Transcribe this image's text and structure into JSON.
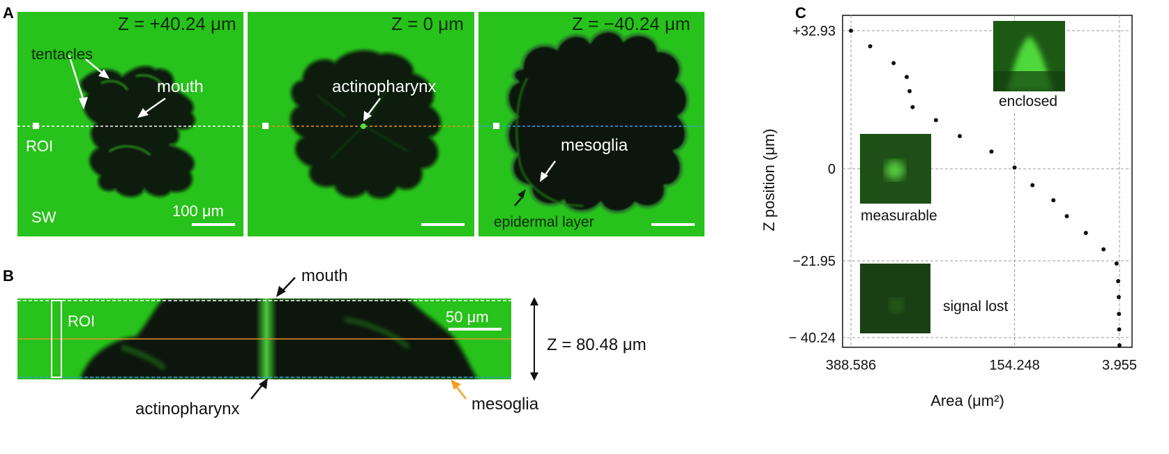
{
  "panel_letters": {
    "a": "A",
    "b": "B",
    "c": "C"
  },
  "panel_a": {
    "image1": {
      "z_label": "Z = +40.24 μm",
      "tentacles": "tentacles",
      "mouth": "mouth",
      "roi": "ROI",
      "sw": "SW",
      "scale": "100 μm"
    },
    "image2": {
      "z_label": "Z = 0 μm",
      "actinopharynx": "actinopharynx"
    },
    "image3": {
      "z_label": "Z = −40.24 μm",
      "mesoglia": "mesoglia",
      "epidermal": "epidermal layer"
    }
  },
  "panel_b": {
    "roi": "ROI",
    "scale": "50 μm",
    "mouth": "mouth",
    "actinopharynx": "actinopharynx",
    "mesoglia": "mesoglia",
    "z_span": "Z = 80.48 μm"
  },
  "colors": {
    "micro_green": "#27c21b",
    "dark_tissue": "#0a1a08",
    "white_line": "#ffffff",
    "orange_line": "#e8922a",
    "blue_line": "#3aa0e0",
    "arrow_orange": "#f0a020"
  },
  "chart_data": {
    "type": "scatter",
    "xlabel": "Area (μm²)",
    "ylabel": "Z position (μm)",
    "x_tick_labels": [
      "388.586",
      "154.248",
      "3.955"
    ],
    "y_tick_labels": [
      "+32.93",
      "0",
      "−21.95",
      "− 40.24"
    ],
    "y_ticks": [
      32.93,
      0,
      -21.95,
      -40.24
    ],
    "x_ticks": [
      388.586,
      154.248,
      3.955
    ],
    "xlim": [
      388.586,
      3.955
    ],
    "ylim": [
      -40.24,
      32.93
    ],
    "grid": true,
    "series": [
      {
        "points": [
          {
            "x": 388.586,
            "y": 32.93
          },
          {
            "x": 361.0,
            "y": 29.2
          },
          {
            "x": 327.5,
            "y": 25.2
          },
          {
            "x": 308.7,
            "y": 21.9
          },
          {
            "x": 304.6,
            "y": 18.5
          },
          {
            "x": 300.2,
            "y": 14.7
          },
          {
            "x": 266.8,
            "y": 11.6
          },
          {
            "x": 232.7,
            "y": 7.8
          },
          {
            "x": 187.3,
            "y": 4.1
          },
          {
            "x": 154.248,
            "y": 0.3
          },
          {
            "x": 128.6,
            "y": -3.9
          },
          {
            "x": 98.6,
            "y": -7.5
          },
          {
            "x": 79.4,
            "y": -11.3
          },
          {
            "x": 52.1,
            "y": -15.3
          },
          {
            "x": 26.8,
            "y": -19.2
          },
          {
            "x": 8.1,
            "y": -22.6
          },
          {
            "x": 5.8,
            "y": -26.8
          },
          {
            "x": 5.0,
            "y": -30.6
          },
          {
            "x": 4.7,
            "y": -34.6
          },
          {
            "x": 4.4,
            "y": -38.3
          },
          {
            "x": 3.955,
            "y": -42.1
          }
        ]
      }
    ],
    "insets": {
      "enclosed": "enclosed",
      "measurable": "measurable",
      "signal_lost": "signal lost"
    }
  }
}
